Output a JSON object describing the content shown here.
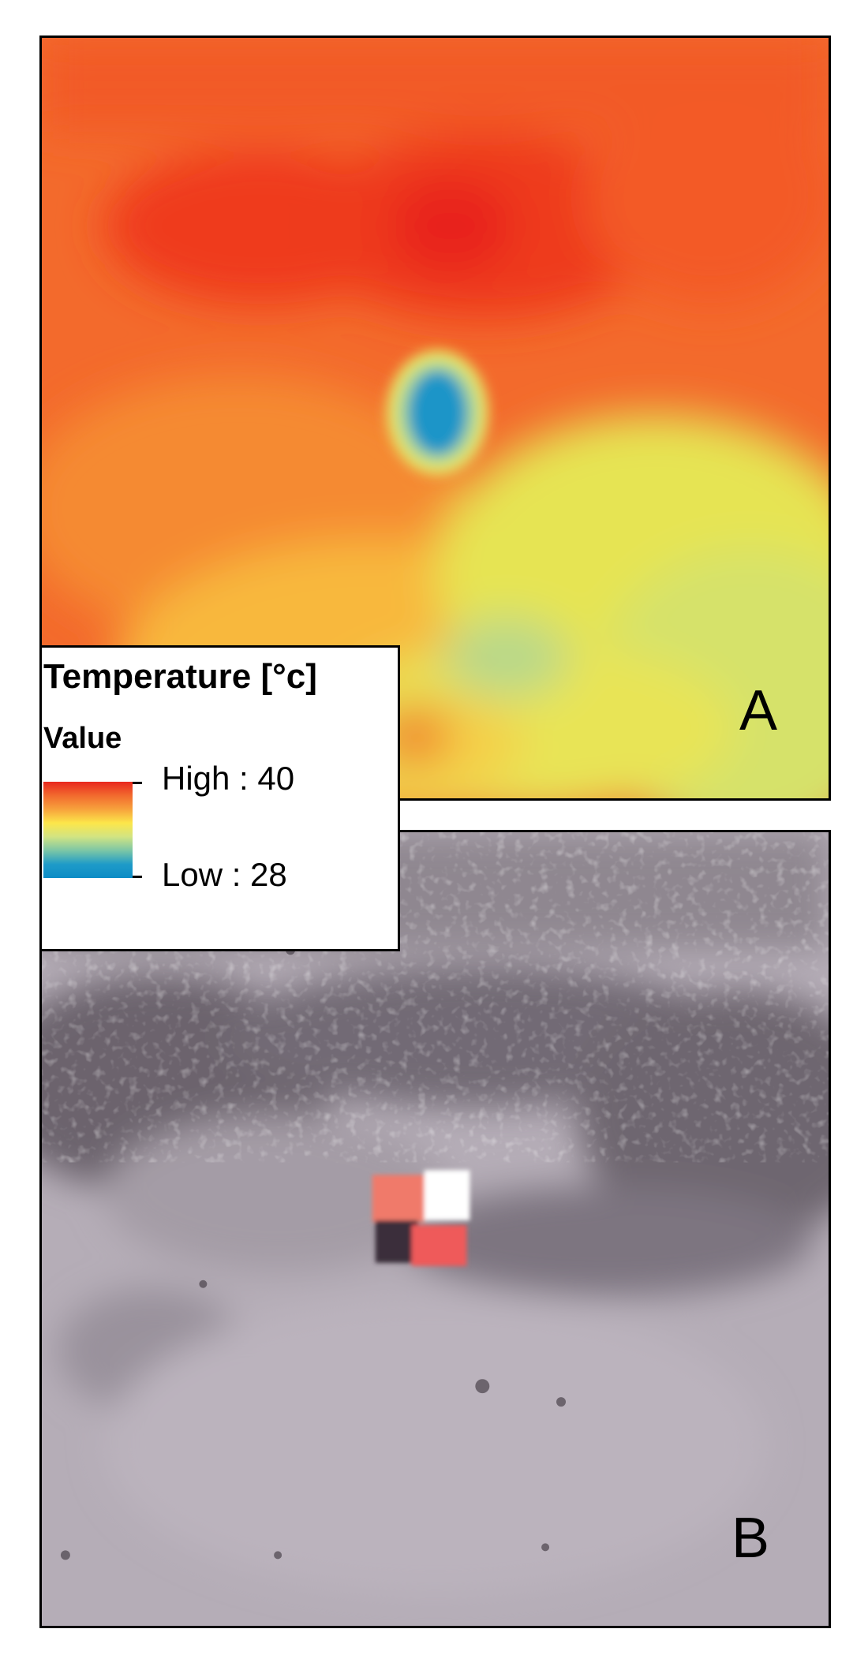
{
  "panels": {
    "a": {
      "letter": "A"
    },
    "b": {
      "letter": "B"
    }
  },
  "legend": {
    "title": "Temperature [°c]",
    "subtitle": "Value",
    "high_label": "High : 40",
    "low_label": "Low : 28",
    "high_value": 40,
    "low_value": 28,
    "ramp_colors": [
      "#e8281e",
      "#f26a2e",
      "#f7a23c",
      "#fce64a",
      "#d2e482",
      "#7cc6a6",
      "#1e9bc8",
      "#0c8cc6"
    ]
  }
}
